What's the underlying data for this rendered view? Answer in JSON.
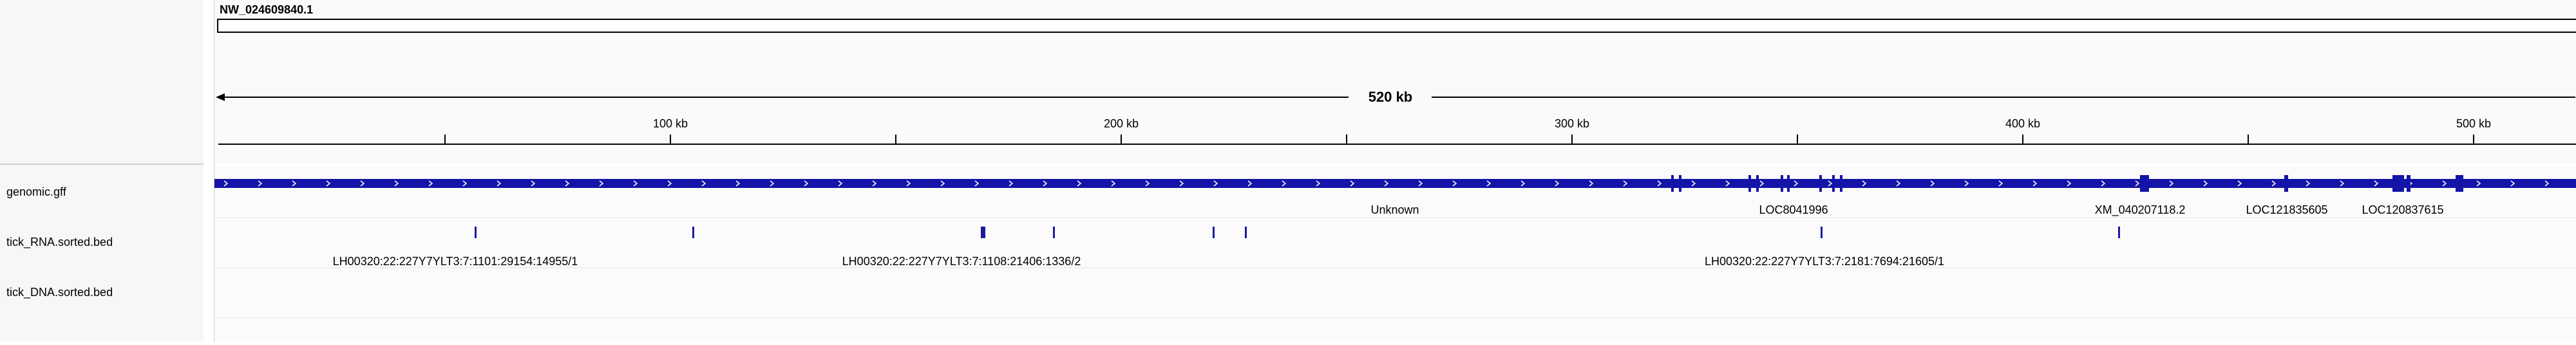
{
  "header": {
    "chromosome": "NW_024609840.1",
    "span_label": "520 kb"
  },
  "ruler": {
    "ticks": [
      "100 kb",
      "200 kb",
      "300 kb",
      "400 kb",
      "500 kb"
    ]
  },
  "tracks": [
    {
      "name": "genomic.gff"
    },
    {
      "name": "tick_RNA.sorted.bed"
    },
    {
      "name": "tick_DNA.sorted.bed"
    }
  ],
  "gff_features": [
    {
      "label": "Unknown"
    },
    {
      "label": "LOC8041996"
    },
    {
      "label": "XM_040207118.2"
    },
    {
      "label": "LOC121835605"
    },
    {
      "label": "LOC120837615"
    }
  ],
  "rna_reads": [
    {
      "label": "LH00320:22:227Y7YLT3:7:1101:29154:14955/1"
    },
    {
      "label": "LH00320:22:227Y7YLT3:7:1108:21406:1336/2"
    },
    {
      "label": "LH00320:22:227Y7YLT3:7:2181:7694:21605/1"
    }
  ],
  "colors": {
    "feature": "#1414a8",
    "read": "#1a1aa0",
    "ruler": "#000000"
  }
}
